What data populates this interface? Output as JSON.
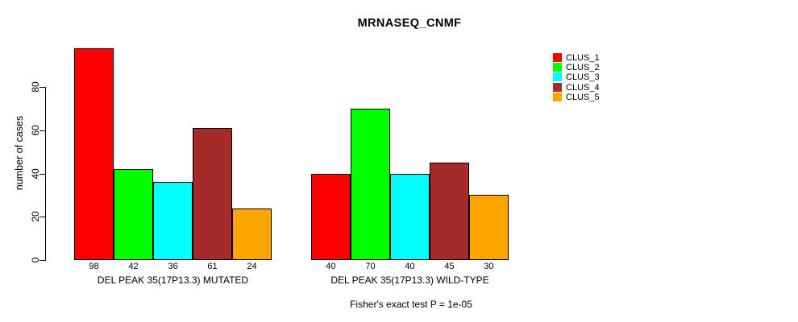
{
  "chart_data": {
    "type": "bar",
    "title": "MRNASEQ_CNMF",
    "ylabel": "number of cases",
    "yticks": [
      0,
      20,
      40,
      60,
      80
    ],
    "ylim": [
      0,
      100
    ],
    "grid": false,
    "legend_position": "right",
    "categories": [
      "CLUS_1",
      "CLUS_2",
      "CLUS_3",
      "CLUS_4",
      "CLUS_5"
    ],
    "groups": [
      {
        "label": "DEL PEAK 35(17P13.3) MUTATED",
        "values": [
          98,
          42,
          36,
          61,
          24
        ]
      },
      {
        "label": "DEL PEAK 35(17P13.3) WILD-TYPE",
        "values": [
          40,
          70,
          40,
          45,
          30
        ]
      }
    ],
    "series_colors": [
      "#FF0000",
      "#00FF00",
      "#00FFFF",
      "#A52A2A",
      "#FFA500"
    ],
    "legend": [
      {
        "label": "CLUS_1",
        "color": "#FF0000"
      },
      {
        "label": "CLUS_2",
        "color": "#00FF00"
      },
      {
        "label": "CLUS_3",
        "color": "#00FFFF"
      },
      {
        "label": "CLUS_4",
        "color": "#A52A2A"
      },
      {
        "label": "CLUS_5",
        "color": "#FFA500"
      }
    ],
    "footnote": "Fisher's exact test P = 1e-05",
    "axis_color": "#000000",
    "bar_border_color": "#000000",
    "background_color": "#FFFFFF"
  }
}
